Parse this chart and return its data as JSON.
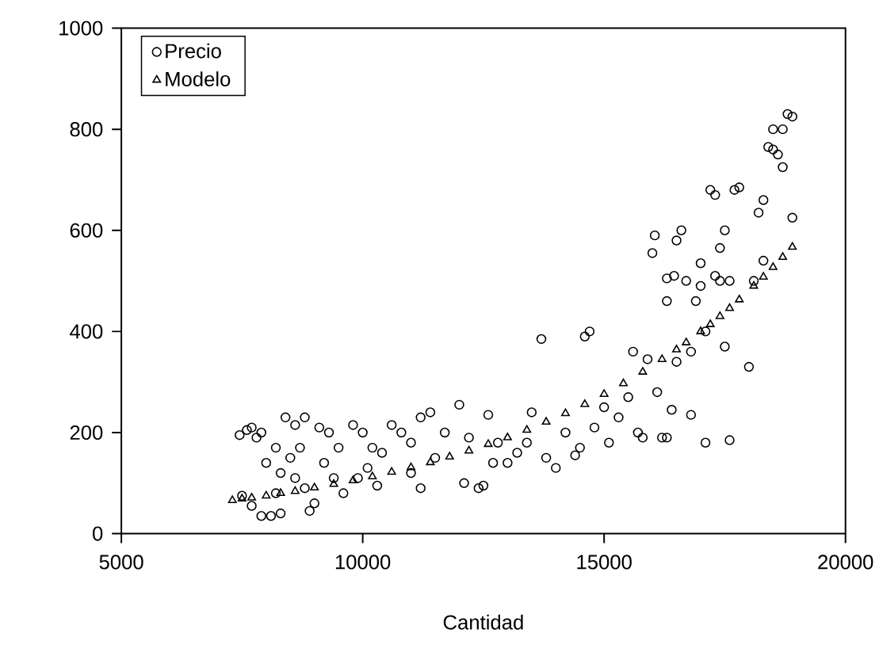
{
  "chart_data": {
    "type": "scatter",
    "xlabel": "Cantidad",
    "xlim": [
      5000,
      20000
    ],
    "ylim": [
      0,
      1000
    ],
    "xticks": [
      5000,
      10000,
      15000,
      20000
    ],
    "yticks": [
      0,
      200,
      400,
      600,
      800,
      1000
    ],
    "grid": false,
    "legend": "top left",
    "series": [
      {
        "name": "Precio",
        "color": "#000000",
        "marker": "circle",
        "x": [
          7450,
          7600,
          7700,
          7800,
          7900,
          7500,
          7700,
          7900,
          8100,
          8200,
          8300,
          8400,
          8600,
          8800,
          8900,
          9000,
          8500,
          8700,
          8200,
          8000,
          8300,
          8600,
          8800,
          9100,
          9300,
          9500,
          9200,
          9400,
          9600,
          9800,
          10000,
          10200,
          10400,
          10100,
          9900,
          10300,
          10600,
          10800,
          11000,
          11200,
          11400,
          11000,
          11200,
          11500,
          11700,
          12000,
          12200,
          12400,
          12100,
          12600,
          12800,
          12700,
          12500,
          13000,
          13200,
          13400,
          13500,
          13700,
          13800,
          14000,
          14200,
          14400,
          14600,
          14700,
          14500,
          14800,
          15000,
          15100,
          15300,
          15500,
          15600,
          15700,
          15800,
          15900,
          16000,
          16050,
          16100,
          16200,
          16300,
          16300,
          16450,
          16500,
          16400,
          16300,
          16600,
          16500,
          16700,
          16800,
          16800,
          16900,
          17000,
          17000,
          17100,
          17100,
          17200,
          17300,
          17400,
          17500,
          17400,
          17300,
          17500,
          17600,
          17600,
          17700,
          17800,
          18000,
          18100,
          18200,
          18300,
          18400,
          18500,
          18600,
          18500,
          18700,
          18800,
          18900,
          18900,
          18700,
          18300
        ],
        "values": [
          195,
          205,
          210,
          190,
          200,
          75,
          55,
          35,
          35,
          80,
          40,
          230,
          215,
          230,
          45,
          60,
          150,
          170,
          170,
          140,
          120,
          110,
          90,
          210,
          200,
          170,
          140,
          110,
          80,
          215,
          200,
          170,
          160,
          130,
          110,
          95,
          215,
          200,
          180,
          230,
          240,
          120,
          90,
          150,
          200,
          255,
          190,
          90,
          100,
          235,
          180,
          140,
          95,
          140,
          160,
          180,
          240,
          385,
          150,
          130,
          200,
          155,
          390,
          400,
          170,
          210,
          250,
          180,
          230,
          270,
          360,
          200,
          190,
          345,
          555,
          590,
          280,
          190,
          460,
          505,
          510,
          340,
          245,
          190,
          600,
          580,
          500,
          360,
          235,
          460,
          535,
          490,
          400,
          180,
          680,
          670,
          565,
          600,
          500,
          510,
          370,
          185,
          500,
          680,
          685,
          330,
          500,
          635,
          660,
          765,
          760,
          750,
          800,
          800,
          830,
          825,
          625,
          725,
          540
        ]
      },
      {
        "name": "Modelo",
        "color": "#000000",
        "marker": "triangle",
        "x": [
          7300,
          7500,
          7700,
          8000,
          8300,
          8600,
          9000,
          9400,
          9800,
          10200,
          10600,
          11000,
          11400,
          11800,
          12200,
          12600,
          13000,
          13400,
          13800,
          14200,
          14600,
          15000,
          15400,
          15800,
          16200,
          16500,
          16700,
          17000,
          17200,
          17400,
          17600,
          17800,
          18100,
          18300,
          18500,
          18700,
          18900
        ],
        "values": [
          66,
          69,
          71,
          75,
          80,
          84,
          91,
          98,
          105,
          113,
          122,
          131,
          141,
          152,
          164,
          177,
          190,
          205,
          221,
          238,
          256,
          276,
          297,
          320,
          345,
          364,
          378,
          400,
          414,
          430,
          446,
          463,
          490,
          508,
          527,
          547,
          567
        ]
      }
    ]
  }
}
